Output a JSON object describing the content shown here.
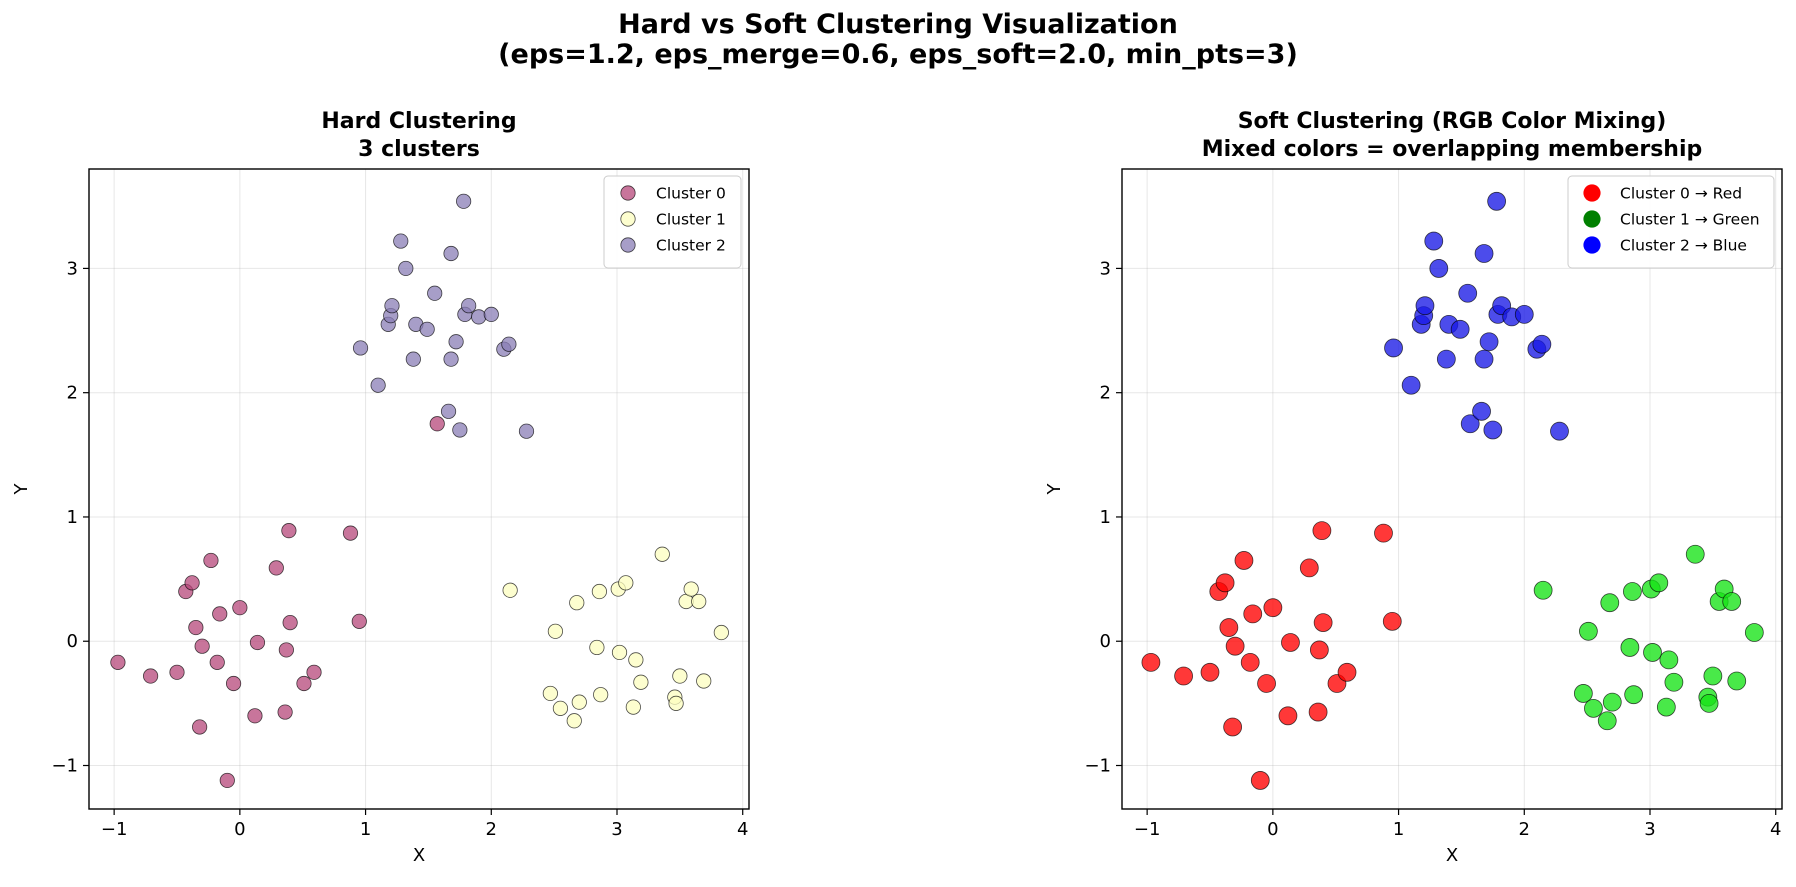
{
  "figure": {
    "suptitle_line1": "Hard vs Soft Clustering Visualization",
    "suptitle_line2": "(eps=1.2, eps_merge=0.6, eps_soft=2.0, min_pts=3)"
  },
  "chart_data": [
    {
      "type": "scatter",
      "title": [
        "Hard Clustering",
        "3 clusters"
      ],
      "xlabel": "X",
      "ylabel": "Y",
      "xlim": [
        -1.2,
        4.05
      ],
      "ylim": [
        -1.35,
        3.8
      ],
      "xticks": [
        -1,
        0,
        1,
        2,
        3,
        4
      ],
      "yticks": [
        -1,
        0,
        1,
        2,
        3
      ],
      "grid": true,
      "legend_position": "top-right",
      "series": [
        {
          "name": "Cluster 0",
          "color": "#b5477a",
          "points": [
            [
              -0.97,
              -0.17
            ],
            [
              -0.71,
              -0.28
            ],
            [
              -0.5,
              -0.25
            ],
            [
              -0.43,
              0.4
            ],
            [
              -0.38,
              0.47
            ],
            [
              -0.35,
              0.11
            ],
            [
              -0.3,
              -0.04
            ],
            [
              -0.23,
              0.65
            ],
            [
              -0.18,
              -0.17
            ],
            [
              -0.16,
              0.22
            ],
            [
              -0.32,
              -0.69
            ],
            [
              -0.1,
              -1.12
            ],
            [
              -0.05,
              -0.34
            ],
            [
              0.0,
              0.27
            ],
            [
              0.12,
              -0.6
            ],
            [
              0.14,
              -0.01
            ],
            [
              0.29,
              0.59
            ],
            [
              0.36,
              -0.57
            ],
            [
              0.37,
              -0.07
            ],
            [
              0.39,
              0.89
            ],
            [
              0.4,
              0.15
            ],
            [
              0.51,
              -0.34
            ],
            [
              0.59,
              -0.25
            ],
            [
              0.88,
              0.87
            ],
            [
              0.95,
              0.16
            ],
            [
              1.57,
              1.75
            ]
          ]
        },
        {
          "name": "Cluster 1",
          "color": "#fcfdbf",
          "points": [
            [
              2.15,
              0.41
            ],
            [
              2.47,
              -0.42
            ],
            [
              2.51,
              0.08
            ],
            [
              2.55,
              -0.54
            ],
            [
              2.66,
              -0.64
            ],
            [
              2.68,
              0.31
            ],
            [
              2.7,
              -0.49
            ],
            [
              2.84,
              -0.05
            ],
            [
              2.86,
              0.4
            ],
            [
              2.87,
              -0.43
            ],
            [
              3.01,
              0.42
            ],
            [
              3.02,
              -0.09
            ],
            [
              3.07,
              0.47
            ],
            [
              3.13,
              -0.53
            ],
            [
              3.15,
              -0.15
            ],
            [
              3.19,
              -0.33
            ],
            [
              3.36,
              0.7
            ],
            [
              3.46,
              -0.45
            ],
            [
              3.47,
              -0.5
            ],
            [
              3.5,
              -0.28
            ],
            [
              3.55,
              0.32
            ],
            [
              3.59,
              0.42
            ],
            [
              3.65,
              0.32
            ],
            [
              3.69,
              -0.32
            ],
            [
              3.83,
              0.07
            ]
          ]
        },
        {
          "name": "Cluster 2",
          "color": "#8a7db5",
          "points": [
            [
              0.96,
              2.36
            ],
            [
              1.1,
              2.06
            ],
            [
              1.18,
              2.55
            ],
            [
              1.2,
              2.62
            ],
            [
              1.21,
              2.7
            ],
            [
              1.28,
              3.22
            ],
            [
              1.32,
              3.0
            ],
            [
              1.38,
              2.27
            ],
            [
              1.4,
              2.55
            ],
            [
              1.49,
              2.51
            ],
            [
              1.55,
              2.8
            ],
            [
              1.66,
              1.85
            ],
            [
              1.68,
              2.27
            ],
            [
              1.68,
              3.12
            ],
            [
              1.72,
              2.41
            ],
            [
              1.75,
              1.7
            ],
            [
              1.78,
              3.54
            ],
            [
              1.79,
              2.63
            ],
            [
              1.82,
              2.7
            ],
            [
              1.9,
              2.61
            ],
            [
              2.0,
              2.63
            ],
            [
              2.1,
              2.35
            ],
            [
              2.14,
              2.39
            ],
            [
              2.28,
              1.69
            ]
          ]
        }
      ]
    },
    {
      "type": "scatter",
      "title": [
        "Soft Clustering (RGB Color Mixing)",
        "Mixed colors = overlapping membership"
      ],
      "xlabel": "X",
      "ylabel": "Y",
      "xlim": [
        -1.2,
        4.05
      ],
      "ylim": [
        -1.35,
        3.8
      ],
      "xticks": [
        -1,
        0,
        1,
        2,
        3,
        4
      ],
      "yticks": [
        -1,
        0,
        1,
        2,
        3
      ],
      "grid": true,
      "legend_position": "top-right",
      "series": [
        {
          "name": "Cluster 0 → Red",
          "color": "#ff0000",
          "points": [
            [
              -0.97,
              -0.17
            ],
            [
              -0.71,
              -0.28
            ],
            [
              -0.5,
              -0.25
            ],
            [
              -0.43,
              0.4
            ],
            [
              -0.38,
              0.47
            ],
            [
              -0.35,
              0.11
            ],
            [
              -0.3,
              -0.04
            ],
            [
              -0.23,
              0.65
            ],
            [
              -0.18,
              -0.17
            ],
            [
              -0.16,
              0.22
            ],
            [
              -0.32,
              -0.69
            ],
            [
              -0.1,
              -1.12
            ],
            [
              -0.05,
              -0.34
            ],
            [
              0.0,
              0.27
            ],
            [
              0.12,
              -0.6
            ],
            [
              0.14,
              -0.01
            ],
            [
              0.29,
              0.59
            ],
            [
              0.36,
              -0.57
            ],
            [
              0.37,
              -0.07
            ],
            [
              0.39,
              0.89
            ],
            [
              0.4,
              0.15
            ],
            [
              0.51,
              -0.34
            ],
            [
              0.59,
              -0.25
            ],
            [
              0.88,
              0.87
            ],
            [
              0.95,
              0.16
            ]
          ]
        },
        {
          "name": "Cluster 1 → Green",
          "color": "#008000",
          "point_color": "#16e316",
          "points": [
            [
              2.15,
              0.41
            ],
            [
              2.47,
              -0.42
            ],
            [
              2.51,
              0.08
            ],
            [
              2.55,
              -0.54
            ],
            [
              2.66,
              -0.64
            ],
            [
              2.68,
              0.31
            ],
            [
              2.7,
              -0.49
            ],
            [
              2.84,
              -0.05
            ],
            [
              2.86,
              0.4
            ],
            [
              2.87,
              -0.43
            ],
            [
              3.01,
              0.42
            ],
            [
              3.02,
              -0.09
            ],
            [
              3.07,
              0.47
            ],
            [
              3.13,
              -0.53
            ],
            [
              3.15,
              -0.15
            ],
            [
              3.19,
              -0.33
            ],
            [
              3.36,
              0.7
            ],
            [
              3.46,
              -0.45
            ],
            [
              3.47,
              -0.5
            ],
            [
              3.5,
              -0.28
            ],
            [
              3.55,
              0.32
            ],
            [
              3.59,
              0.42
            ],
            [
              3.65,
              0.32
            ],
            [
              3.69,
              -0.32
            ],
            [
              3.83,
              0.07
            ]
          ]
        },
        {
          "name": "Cluster 2 → Blue",
          "color": "#0000ff",
          "point_color": "#1a1ae6",
          "points": [
            [
              0.96,
              2.36
            ],
            [
              1.1,
              2.06
            ],
            [
              1.18,
              2.55
            ],
            [
              1.2,
              2.62
            ],
            [
              1.21,
              2.7
            ],
            [
              1.28,
              3.22
            ],
            [
              1.32,
              3.0
            ],
            [
              1.38,
              2.27
            ],
            [
              1.4,
              2.55
            ],
            [
              1.49,
              2.51
            ],
            [
              1.55,
              2.8
            ],
            [
              1.57,
              1.75
            ],
            [
              1.66,
              1.85
            ],
            [
              1.68,
              2.27
            ],
            [
              1.68,
              3.12
            ],
            [
              1.72,
              2.41
            ],
            [
              1.75,
              1.7
            ],
            [
              1.78,
              3.54
            ],
            [
              1.79,
              2.63
            ],
            [
              1.82,
              2.7
            ],
            [
              1.9,
              2.61
            ],
            [
              2.0,
              2.63
            ],
            [
              2.1,
              2.35
            ],
            [
              2.14,
              2.39
            ],
            [
              2.28,
              1.69
            ]
          ]
        }
      ]
    }
  ]
}
